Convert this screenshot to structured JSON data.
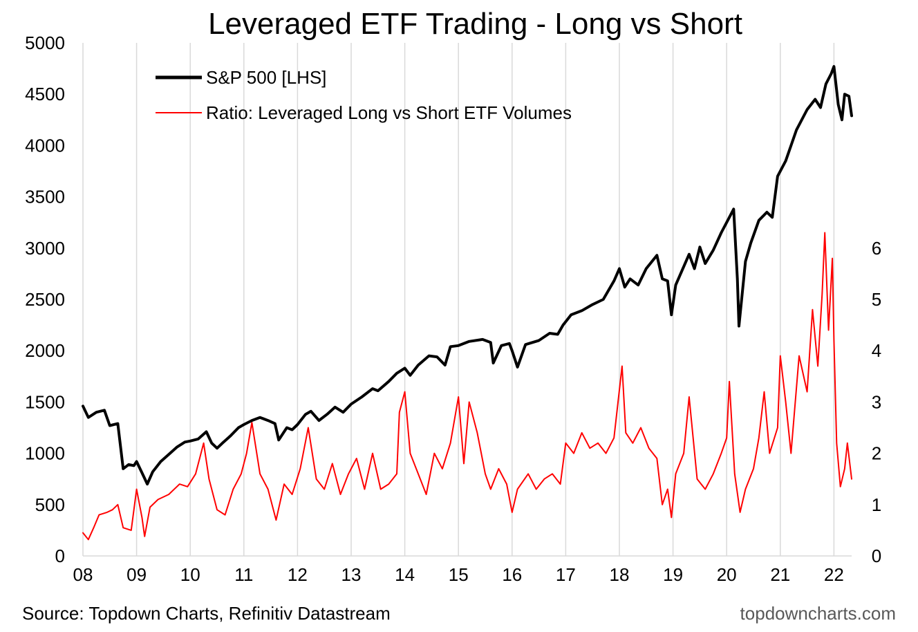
{
  "chart_data": {
    "type": "line",
    "title": "Leveraged ETF Trading - Long vs Short",
    "x_tick_labels": [
      "08",
      "09",
      "10",
      "11",
      "12",
      "13",
      "14",
      "15",
      "16",
      "17",
      "18",
      "19",
      "20",
      "21",
      "22"
    ],
    "x_range": [
      2008.0,
      2022.33
    ],
    "left_axis": {
      "range": [
        0,
        5000
      ],
      "ticks": [
        0,
        500,
        1000,
        1500,
        2000,
        2500,
        3000,
        3500,
        4000,
        4500,
        5000
      ]
    },
    "right_axis": {
      "range": [
        0,
        10
      ],
      "ticks": [
        0,
        1,
        2,
        3,
        4,
        5,
        6
      ]
    },
    "grid": "vertical",
    "legend_placement": "top-left",
    "series": [
      {
        "name": "S&P 500 [LHS]",
        "axis": "left",
        "color": "#000000",
        "points": [
          [
            2008.0,
            1460
          ],
          [
            2008.1,
            1350
          ],
          [
            2008.25,
            1400
          ],
          [
            2008.4,
            1420
          ],
          [
            2008.5,
            1270
          ],
          [
            2008.65,
            1290
          ],
          [
            2008.75,
            850
          ],
          [
            2008.85,
            890
          ],
          [
            2008.95,
            880
          ],
          [
            2009.0,
            920
          ],
          [
            2009.1,
            810
          ],
          [
            2009.2,
            700
          ],
          [
            2009.3,
            820
          ],
          [
            2009.45,
            920
          ],
          [
            2009.6,
            990
          ],
          [
            2009.75,
            1060
          ],
          [
            2009.9,
            1110
          ],
          [
            2010.0,
            1120
          ],
          [
            2010.15,
            1140
          ],
          [
            2010.3,
            1210
          ],
          [
            2010.4,
            1100
          ],
          [
            2010.5,
            1050
          ],
          [
            2010.6,
            1100
          ],
          [
            2010.75,
            1170
          ],
          [
            2010.9,
            1250
          ],
          [
            2011.0,
            1280
          ],
          [
            2011.15,
            1320
          ],
          [
            2011.3,
            1350
          ],
          [
            2011.45,
            1320
          ],
          [
            2011.58,
            1290
          ],
          [
            2011.65,
            1130
          ],
          [
            2011.8,
            1250
          ],
          [
            2011.9,
            1230
          ],
          [
            2012.0,
            1280
          ],
          [
            2012.15,
            1380
          ],
          [
            2012.25,
            1410
          ],
          [
            2012.4,
            1320
          ],
          [
            2012.55,
            1380
          ],
          [
            2012.7,
            1450
          ],
          [
            2012.85,
            1400
          ],
          [
            2013.0,
            1480
          ],
          [
            2013.2,
            1550
          ],
          [
            2013.4,
            1630
          ],
          [
            2013.5,
            1610
          ],
          [
            2013.7,
            1700
          ],
          [
            2013.85,
            1780
          ],
          [
            2014.0,
            1830
          ],
          [
            2014.1,
            1760
          ],
          [
            2014.25,
            1860
          ],
          [
            2014.45,
            1950
          ],
          [
            2014.6,
            1940
          ],
          [
            2014.75,
            1860
          ],
          [
            2014.85,
            2040
          ],
          [
            2015.0,
            2050
          ],
          [
            2015.2,
            2090
          ],
          [
            2015.45,
            2110
          ],
          [
            2015.6,
            2080
          ],
          [
            2015.65,
            1880
          ],
          [
            2015.8,
            2050
          ],
          [
            2015.95,
            2070
          ],
          [
            2016.0,
            2000
          ],
          [
            2016.1,
            1840
          ],
          [
            2016.25,
            2060
          ],
          [
            2016.5,
            2100
          ],
          [
            2016.7,
            2170
          ],
          [
            2016.85,
            2160
          ],
          [
            2016.95,
            2250
          ],
          [
            2017.1,
            2350
          ],
          [
            2017.3,
            2390
          ],
          [
            2017.5,
            2450
          ],
          [
            2017.7,
            2500
          ],
          [
            2017.9,
            2680
          ],
          [
            2018.0,
            2800
          ],
          [
            2018.1,
            2620
          ],
          [
            2018.2,
            2700
          ],
          [
            2018.35,
            2640
          ],
          [
            2018.5,
            2800
          ],
          [
            2018.7,
            2930
          ],
          [
            2018.8,
            2700
          ],
          [
            2018.9,
            2680
          ],
          [
            2018.97,
            2350
          ],
          [
            2019.05,
            2640
          ],
          [
            2019.3,
            2940
          ],
          [
            2019.4,
            2800
          ],
          [
            2019.5,
            3010
          ],
          [
            2019.6,
            2850
          ],
          [
            2019.75,
            2980
          ],
          [
            2019.9,
            3150
          ],
          [
            2020.0,
            3250
          ],
          [
            2020.13,
            3380
          ],
          [
            2020.2,
            2700
          ],
          [
            2020.23,
            2240
          ],
          [
            2020.35,
            2870
          ],
          [
            2020.45,
            3050
          ],
          [
            2020.6,
            3270
          ],
          [
            2020.75,
            3350
          ],
          [
            2020.85,
            3300
          ],
          [
            2020.95,
            3700
          ],
          [
            2021.1,
            3850
          ],
          [
            2021.3,
            4150
          ],
          [
            2021.5,
            4350
          ],
          [
            2021.65,
            4450
          ],
          [
            2021.75,
            4370
          ],
          [
            2021.85,
            4600
          ],
          [
            2021.95,
            4700
          ],
          [
            2022.0,
            4770
          ],
          [
            2022.08,
            4400
          ],
          [
            2022.15,
            4250
          ],
          [
            2022.2,
            4500
          ],
          [
            2022.28,
            4480
          ],
          [
            2022.33,
            4290
          ]
        ]
      },
      {
        "name": "Ratio: Leveraged Long vs Short ETF Volumes",
        "axis": "right",
        "color": "#ff0000",
        "points": [
          [
            2008.0,
            0.45
          ],
          [
            2008.1,
            0.32
          ],
          [
            2008.2,
            0.55
          ],
          [
            2008.3,
            0.8
          ],
          [
            2008.45,
            0.85
          ],
          [
            2008.55,
            0.9
          ],
          [
            2008.65,
            1.0
          ],
          [
            2008.75,
            0.55
          ],
          [
            2008.9,
            0.5
          ],
          [
            2009.0,
            1.3
          ],
          [
            2009.1,
            0.75
          ],
          [
            2009.15,
            0.38
          ],
          [
            2009.25,
            0.95
          ],
          [
            2009.4,
            1.1
          ],
          [
            2009.6,
            1.2
          ],
          [
            2009.8,
            1.4
          ],
          [
            2009.95,
            1.35
          ],
          [
            2010.1,
            1.6
          ],
          [
            2010.25,
            2.2
          ],
          [
            2010.35,
            1.5
          ],
          [
            2010.5,
            0.9
          ],
          [
            2010.65,
            0.8
          ],
          [
            2010.8,
            1.3
          ],
          [
            2010.95,
            1.6
          ],
          [
            2011.05,
            2.0
          ],
          [
            2011.15,
            2.6
          ],
          [
            2011.3,
            1.6
          ],
          [
            2011.45,
            1.3
          ],
          [
            2011.6,
            0.7
          ],
          [
            2011.75,
            1.4
          ],
          [
            2011.9,
            1.2
          ],
          [
            2012.05,
            1.7
          ],
          [
            2012.2,
            2.5
          ],
          [
            2012.35,
            1.5
          ],
          [
            2012.5,
            1.3
          ],
          [
            2012.65,
            1.8
          ],
          [
            2012.8,
            1.2
          ],
          [
            2012.95,
            1.6
          ],
          [
            2013.1,
            1.9
          ],
          [
            2013.25,
            1.3
          ],
          [
            2013.4,
            2.0
          ],
          [
            2013.55,
            1.3
          ],
          [
            2013.7,
            1.4
          ],
          [
            2013.85,
            1.6
          ],
          [
            2013.9,
            2.8
          ],
          [
            2014.0,
            3.2
          ],
          [
            2014.1,
            2.0
          ],
          [
            2014.25,
            1.6
          ],
          [
            2014.4,
            1.2
          ],
          [
            2014.55,
            2.0
          ],
          [
            2014.7,
            1.7
          ],
          [
            2014.85,
            2.2
          ],
          [
            2015.0,
            3.1
          ],
          [
            2015.1,
            1.8
          ],
          [
            2015.2,
            3.0
          ],
          [
            2015.35,
            2.4
          ],
          [
            2015.5,
            1.6
          ],
          [
            2015.6,
            1.3
          ],
          [
            2015.75,
            1.7
          ],
          [
            2015.9,
            1.4
          ],
          [
            2016.0,
            0.85
          ],
          [
            2016.1,
            1.3
          ],
          [
            2016.3,
            1.6
          ],
          [
            2016.45,
            1.3
          ],
          [
            2016.6,
            1.5
          ],
          [
            2016.75,
            1.6
          ],
          [
            2016.9,
            1.4
          ],
          [
            2017.0,
            2.2
          ],
          [
            2017.15,
            2.0
          ],
          [
            2017.3,
            2.4
          ],
          [
            2017.45,
            2.1
          ],
          [
            2017.6,
            2.2
          ],
          [
            2017.75,
            2.0
          ],
          [
            2017.9,
            2.3
          ],
          [
            2018.05,
            3.7
          ],
          [
            2018.12,
            2.4
          ],
          [
            2018.25,
            2.2
          ],
          [
            2018.4,
            2.5
          ],
          [
            2018.55,
            2.1
          ],
          [
            2018.7,
            1.9
          ],
          [
            2018.8,
            1.0
          ],
          [
            2018.9,
            1.3
          ],
          [
            2018.97,
            0.75
          ],
          [
            2019.05,
            1.6
          ],
          [
            2019.2,
            2.0
          ],
          [
            2019.3,
            3.1
          ],
          [
            2019.45,
            1.5
          ],
          [
            2019.6,
            1.3
          ],
          [
            2019.75,
            1.6
          ],
          [
            2019.9,
            2.0
          ],
          [
            2020.0,
            2.3
          ],
          [
            2020.05,
            3.4
          ],
          [
            2020.15,
            1.6
          ],
          [
            2020.25,
            0.85
          ],
          [
            2020.35,
            1.3
          ],
          [
            2020.5,
            1.7
          ],
          [
            2020.6,
            2.3
          ],
          [
            2020.7,
            3.2
          ],
          [
            2020.8,
            2.0
          ],
          [
            2020.95,
            2.5
          ],
          [
            2021.0,
            3.9
          ],
          [
            2021.1,
            3.0
          ],
          [
            2021.2,
            2.0
          ],
          [
            2021.35,
            3.9
          ],
          [
            2021.5,
            3.2
          ],
          [
            2021.6,
            4.8
          ],
          [
            2021.7,
            3.7
          ],
          [
            2021.78,
            5.1
          ],
          [
            2021.83,
            6.3
          ],
          [
            2021.9,
            4.4
          ],
          [
            2021.97,
            5.8
          ],
          [
            2022.0,
            4.2
          ],
          [
            2022.05,
            2.2
          ],
          [
            2022.12,
            1.35
          ],
          [
            2022.2,
            1.7
          ],
          [
            2022.25,
            2.2
          ],
          [
            2022.33,
            1.5
          ]
        ]
      }
    ]
  },
  "footer": {
    "source": "Source: Topdown Charts, Refinitiv Datastream",
    "brand": "topdowncharts.com"
  }
}
